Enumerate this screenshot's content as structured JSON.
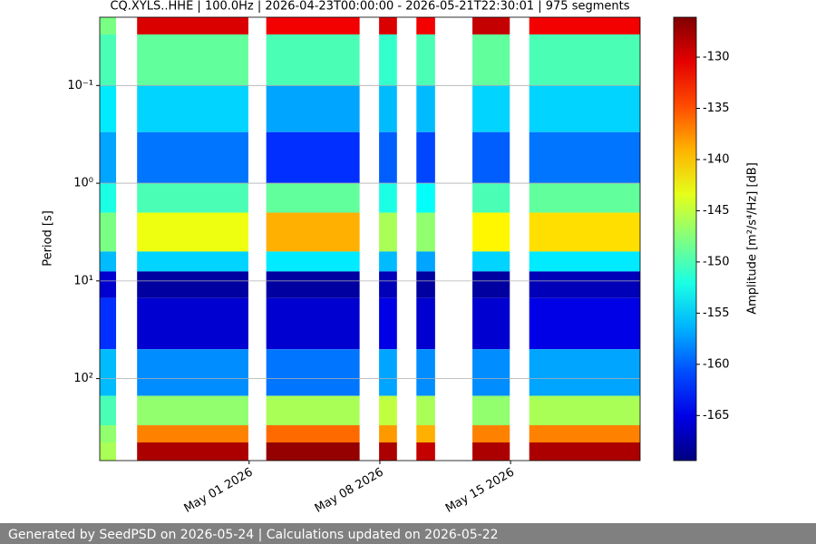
{
  "chart_data": {
    "type": "spectrogram",
    "title": "CQ.XYLS..HHE | 100.0Hz | 2026-04-23T00:00:00 - 2026-05-21T22:30:01 | 975 segments",
    "y_label": "Period [s]",
    "colorbar_label": "Amplitude [m²/s⁴/Hz] [dB]",
    "xlim": [
      "2026-04-23T00:00:00",
      "2026-05-21T22:30:01"
    ],
    "xticks": [
      {
        "value": "2026-05-01",
        "label": "May 01 2026"
      },
      {
        "value": "2026-05-08",
        "label": "May 08 2026"
      },
      {
        "value": "2026-05-15",
        "label": "May 15 2026"
      }
    ],
    "ylim": [
      0.02,
      690
    ],
    "y_log": true,
    "y_inverted": true,
    "yticks": [
      {
        "value": 0.1,
        "label": "10⁻¹"
      },
      {
        "value": 1,
        "label": "10⁰"
      },
      {
        "value": 10,
        "label": "10¹"
      },
      {
        "value": 100,
        "label": "10²"
      }
    ],
    "grid": true,
    "colormap": "jet",
    "clim": [
      -169.4,
      -126.1
    ],
    "cticks": [
      -130,
      -135,
      -140,
      -145,
      -150,
      -155,
      -160,
      -165
    ],
    "period_bins": [
      0.02,
      0.03,
      0.1,
      0.3,
      1,
      2,
      5,
      8,
      15,
      50,
      150,
      300,
      450,
      690
    ],
    "blocks": [
      {
        "start": "2026-04-23T00:00",
        "end": "2026-04-23T21:00",
        "z": [
          -148,
          -150,
          -154,
          -157,
          -152,
          -148,
          -156,
          -166,
          -162,
          -156,
          -150,
          -147,
          -146
        ]
      },
      {
        "start": "2026-04-25T00:00",
        "end": "2026-04-30T23:00",
        "z": [
          -130,
          -149,
          -155,
          -159,
          -150,
          -143,
          -155,
          -168,
          -166,
          -158,
          -147,
          -137,
          -128
        ]
      },
      {
        "start": "2026-05-01T22:00",
        "end": "2026-05-06T22:00",
        "z": [
          -131,
          -150,
          -157,
          -162,
          -149,
          -139,
          -154,
          -168,
          -166,
          -159,
          -146,
          -136,
          -127
        ]
      },
      {
        "start": "2026-05-07T23:00",
        "end": "2026-05-08T22:00",
        "z": [
          -130,
          -151,
          -156,
          -160,
          -152,
          -146,
          -156,
          -167,
          -165,
          -157,
          -145,
          -138,
          -128
        ]
      },
      {
        "start": "2026-05-09T23:00",
        "end": "2026-05-10T23:00",
        "z": [
          -131,
          -150,
          -156,
          -161,
          -153,
          -147,
          -157,
          -168,
          -166,
          -158,
          -146,
          -139,
          -129
        ]
      },
      {
        "start": "2026-05-12T23:00",
        "end": "2026-05-14T23:00",
        "z": [
          -129,
          -149,
          -155,
          -160,
          -150,
          -142,
          -155,
          -168,
          -166,
          -158,
          -147,
          -137,
          -128
        ]
      },
      {
        "start": "2026-05-16T00:00",
        "end": "2026-05-21T22:30",
        "z": [
          -131,
          -150,
          -155,
          -159,
          -149,
          -141,
          -154,
          -167,
          -165,
          -157,
          -146,
          -137,
          -128
        ]
      }
    ]
  },
  "footer": {
    "text": "Generated by SeedPSD on 2026-05-24 | Calculations updated on 2026-05-22"
  }
}
